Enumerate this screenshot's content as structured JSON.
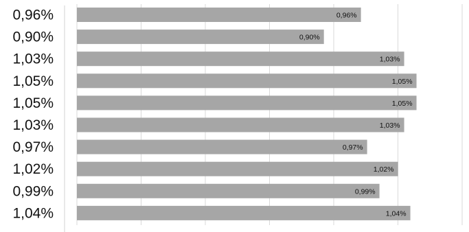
{
  "chart_data": {
    "type": "bar",
    "orientation": "horizontal",
    "categories": [
      "0,96%",
      "0,90%",
      "1,03%",
      "1,05%",
      "1,05%",
      "1,03%",
      "0,97%",
      "1,02%",
      "0,99%",
      "1,04%"
    ],
    "values": [
      0.96,
      0.9,
      1.03,
      1.05,
      1.05,
      1.03,
      0.97,
      1.02,
      0.99,
      1.04
    ],
    "data_labels": [
      "0,96%",
      "0,90%",
      "1,03%",
      "1,05%",
      "1,05%",
      "1,03%",
      "0,97%",
      "1,02%",
      "0,99%",
      "1,04%"
    ],
    "xlim": [
      0.5,
      1.125
    ],
    "grid": true,
    "bar_color": "#a6a6a6"
  }
}
